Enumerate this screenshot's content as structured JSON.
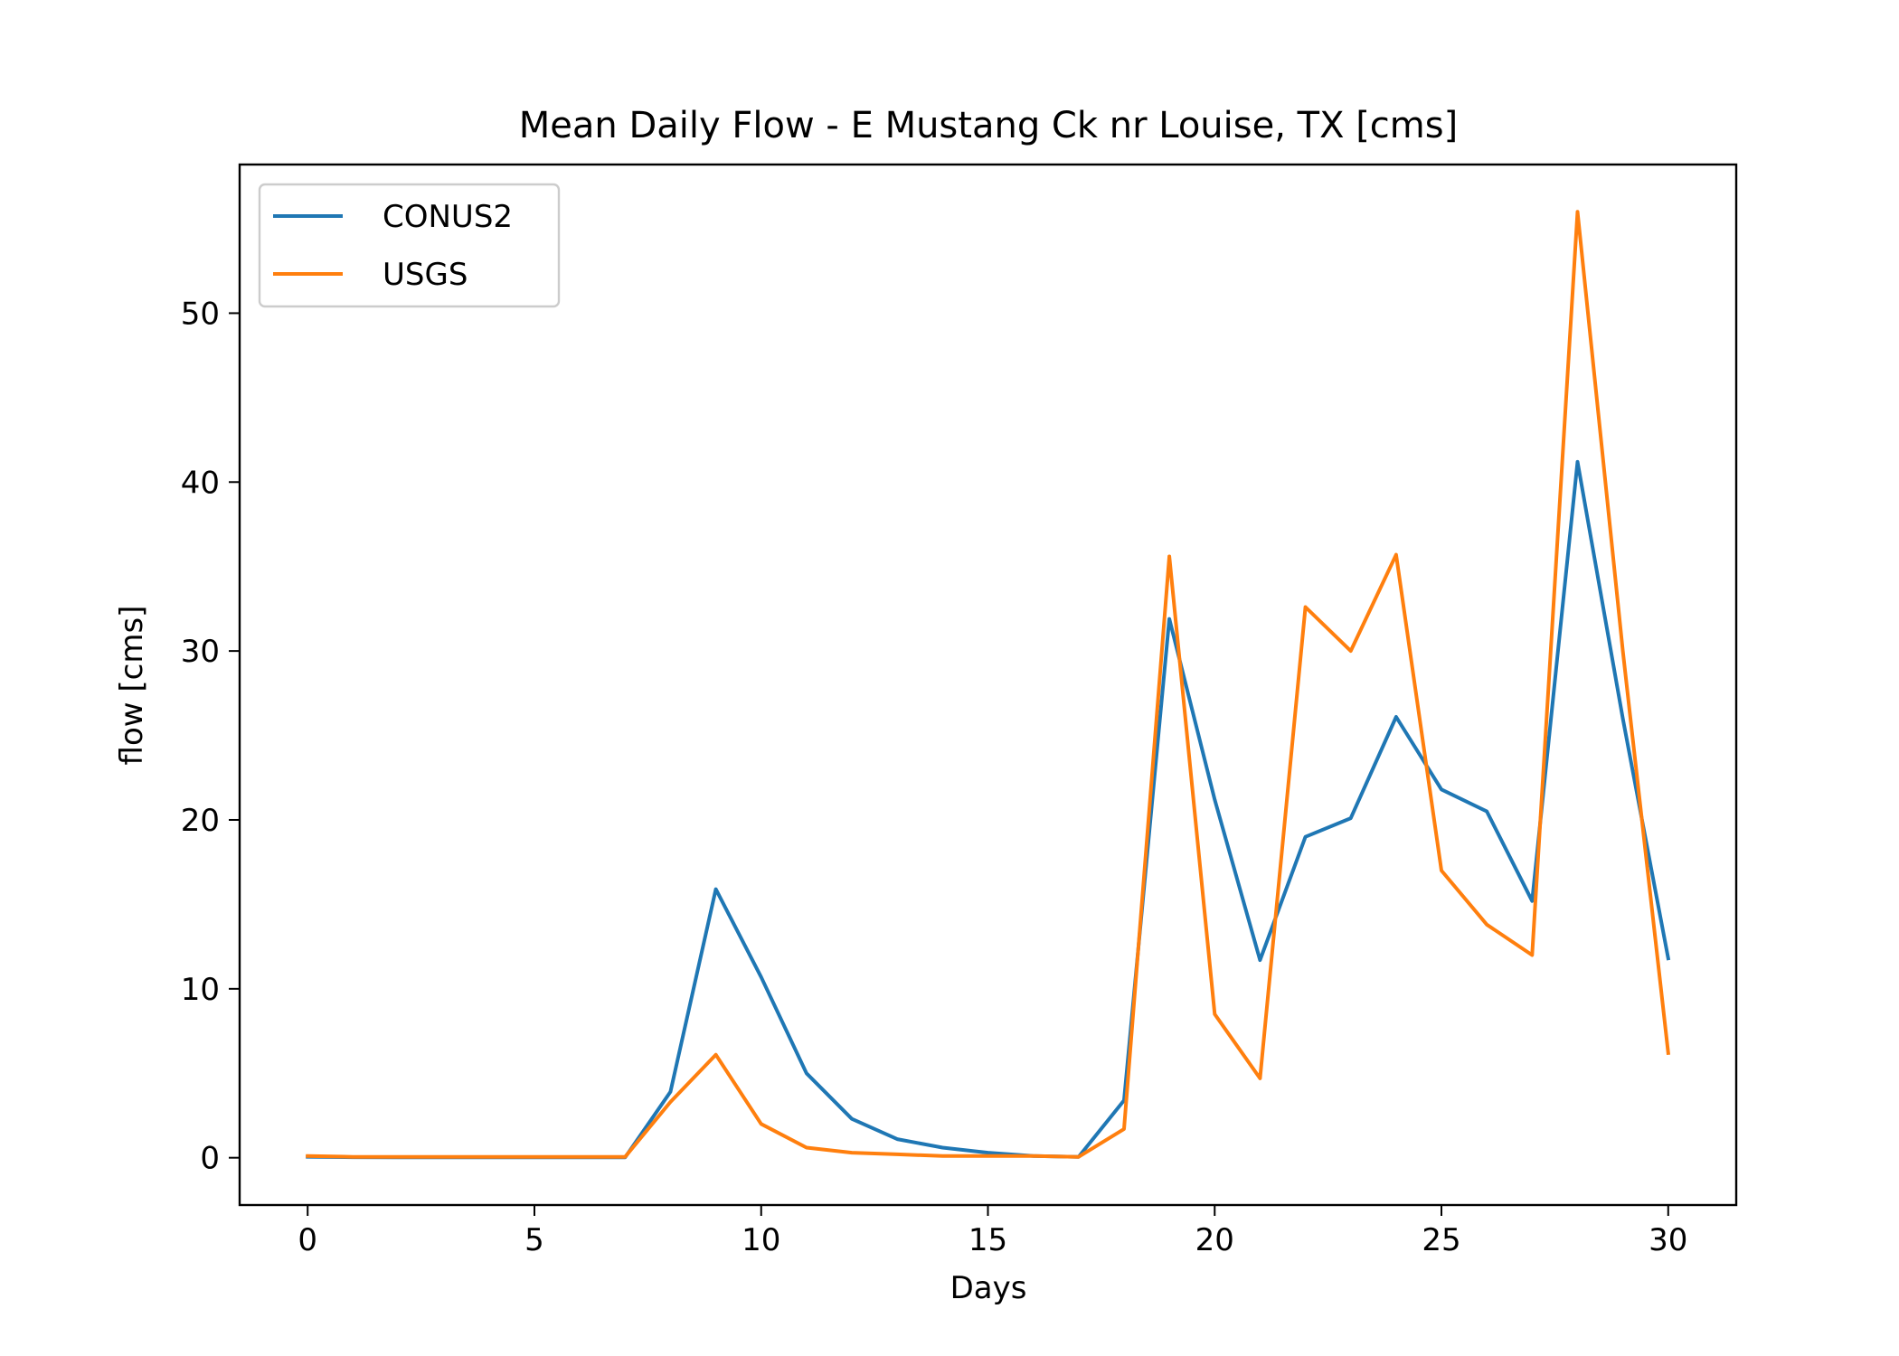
{
  "chart_data": {
    "type": "line",
    "title": "Mean Daily Flow - E Mustang Ck nr Louise, TX [cms]",
    "xlabel": "Days",
    "ylabel": "flow [cms]",
    "xlim": [
      -1.5,
      31.5
    ],
    "ylim": [
      -2.8,
      58.8
    ],
    "xticks": [
      0,
      5,
      10,
      15,
      20,
      25,
      30
    ],
    "yticks": [
      0,
      10,
      20,
      30,
      40,
      50
    ],
    "grid": false,
    "legend_position": "top-left",
    "x": [
      0,
      1,
      2,
      3,
      4,
      5,
      6,
      7,
      8,
      9,
      10,
      11,
      12,
      13,
      14,
      15,
      16,
      17,
      18,
      19,
      20,
      21,
      22,
      23,
      24,
      25,
      26,
      27,
      28,
      29,
      30
    ],
    "series": [
      {
        "name": "CONUS2",
        "color": "#1f77b4",
        "values": [
          0.05,
          0.03,
          0.02,
          0.02,
          0.02,
          0.02,
          0.02,
          0.02,
          3.9,
          15.9,
          10.7,
          5.0,
          2.3,
          1.1,
          0.6,
          0.3,
          0.1,
          0.05,
          3.4,
          31.9,
          21.2,
          11.7,
          19.0,
          20.1,
          26.1,
          21.8,
          20.5,
          15.2,
          41.2,
          26.0,
          11.8
        ]
      },
      {
        "name": "USGS",
        "color": "#ff7f0e",
        "values": [
          0.1,
          0.05,
          0.05,
          0.05,
          0.05,
          0.05,
          0.05,
          0.05,
          3.3,
          6.1,
          2.0,
          0.6,
          0.3,
          0.2,
          0.1,
          0.1,
          0.1,
          0.05,
          1.7,
          35.6,
          8.5,
          4.7,
          32.6,
          30.0,
          35.7,
          17.0,
          13.8,
          12.0,
          56.0,
          30.0,
          6.2
        ]
      }
    ]
  }
}
